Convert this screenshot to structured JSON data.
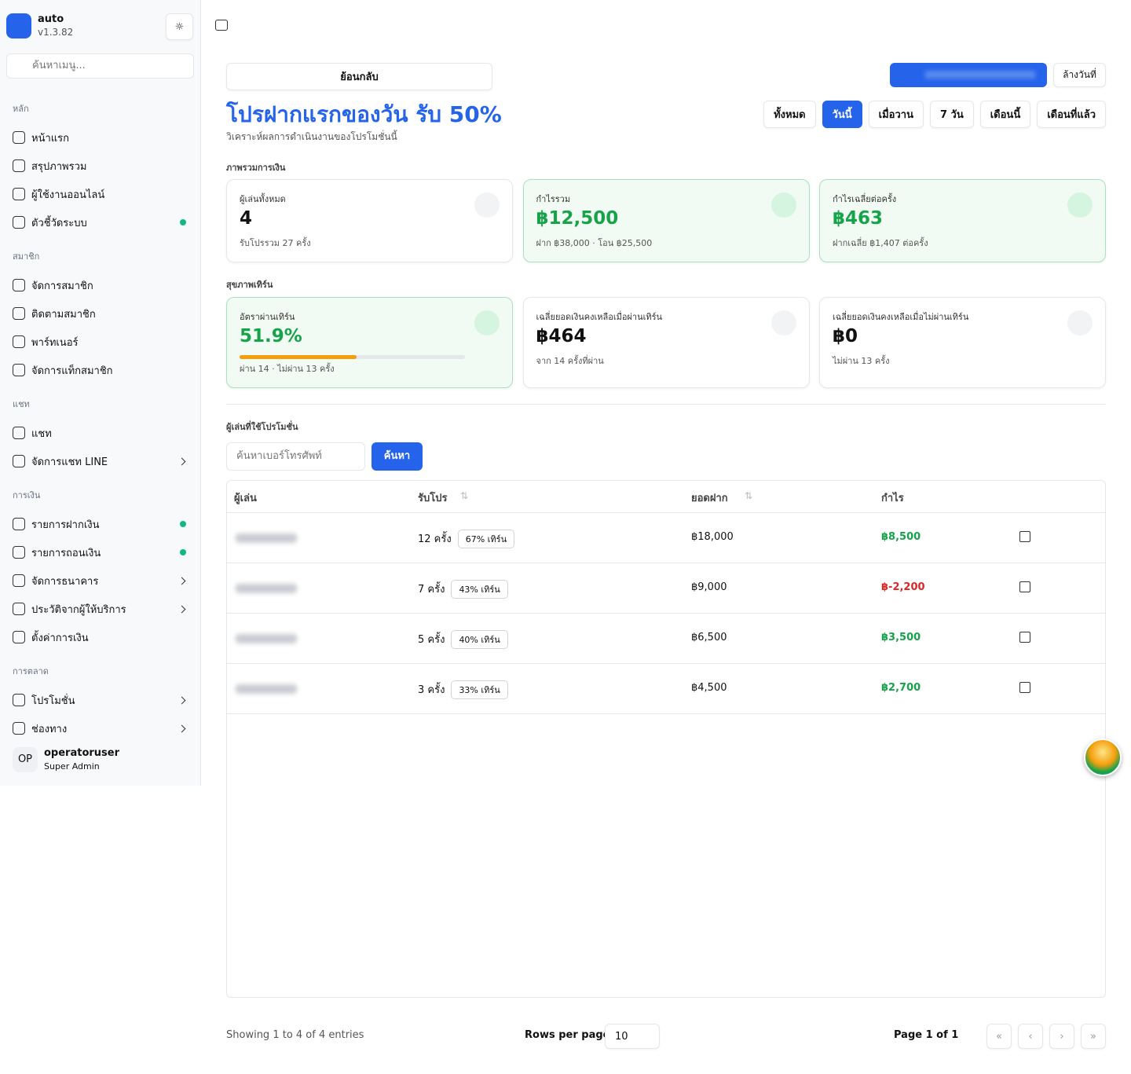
{
  "sidebar": {
    "app_name": "auto",
    "version": "v1.3.82",
    "search_placeholder": "ค้นหาเมนู...",
    "sections": [
      {
        "title": "หลัก",
        "items": [
          {
            "label": "หน้าแรก"
          },
          {
            "label": "สรุปภาพรวม"
          },
          {
            "label": "ผู้ใช้งานออนไลน์"
          },
          {
            "label": "ตัวชี้วัดระบบ",
            "dot": true
          }
        ]
      },
      {
        "title": "สมาชิก",
        "items": [
          {
            "label": "จัดการสมาชิก"
          },
          {
            "label": "ติดตามสมาชิก"
          },
          {
            "label": "พาร์ทเนอร์"
          },
          {
            "label": "จัดการแท็กสมาชิก"
          }
        ]
      },
      {
        "title": "แชท",
        "items": [
          {
            "label": "แชท"
          },
          {
            "label": "จัดการแชท LINE",
            "submenu": true
          }
        ]
      },
      {
        "title": "การเงิน",
        "items": [
          {
            "label": "รายการฝากเงิน",
            "dot": true
          },
          {
            "label": "รายการถอนเงิน",
            "dot": true
          },
          {
            "label": "จัดการธนาคาร",
            "submenu": true
          },
          {
            "label": "ประวัติจากผู้ให้บริการ",
            "submenu": true
          },
          {
            "label": "ตั้งค่าการเงิน"
          }
        ]
      },
      {
        "title": "การตลาด",
        "items": [
          {
            "label": "โปรโมชั่น",
            "submenu": true
          },
          {
            "label": "ช่องทาง",
            "submenu": true
          }
        ]
      }
    ],
    "user": {
      "initials": "OP",
      "name": "operatoruser",
      "role": "Super Admin"
    }
  },
  "header": {
    "back": "ย้อนกลับ",
    "title": "โปรฝากแรกของวัน รับ 50%",
    "subtitle": "วิเคราะห์ผลการดำเนินงานของโปรโมชั่นนี้",
    "clear_date": "ล้างวันที่",
    "filters": [
      "ทั้งหมด",
      "วันนี้",
      "เมื่อวาน",
      "7 วัน",
      "เดือนนี้",
      "เดือนที่แล้ว"
    ],
    "active_filter": 1
  },
  "overview": {
    "heading": "ภาพรวมการเงิน",
    "cards": [
      {
        "label": "ผู้เล่นทั้งหมด",
        "value": "4",
        "note": "รับโปรรวม 27 ครั้ง"
      },
      {
        "label": "กำไรรวม",
        "value": "฿12,500",
        "note": "ฝาก ฿38,000 · โอน ฿25,500",
        "highlight": true
      },
      {
        "label": "กำไรเฉลี่ยต่อครั้ง",
        "value": "฿463",
        "note": "ฝากเฉลี่ย ฿1,407 ต่อครั้ง",
        "highlight": true
      }
    ]
  },
  "health": {
    "heading": "สุขภาพเทิร์น",
    "cards": [
      {
        "label": "อัตราผ่านเทิร์น",
        "value": "51.9%",
        "progress": 51.9,
        "note": "ผ่าน 14 · ไม่ผ่าน 13 ครั้ง",
        "highlight": true
      },
      {
        "label": "เฉลี่ยยอดเงินคงเหลือเมื่อผ่านเทิร์น",
        "value": "฿464",
        "note": "จาก 14 ครั้งที่ผ่าน"
      },
      {
        "label": "เฉลี่ยยอดเงินคงเหลือเมื่อไม่ผ่านเทิร์น",
        "value": "฿0",
        "note": "ไม่ผ่าน 13 ครั้ง"
      }
    ]
  },
  "players": {
    "heading": "ผู้เล่นที่ใช้โปรโมชั่น",
    "search_placeholder": "ค้นหาเบอร์โทรศัพท์",
    "search_button": "ค้นหา",
    "columns": [
      "ผู้เล่น",
      "รับโปร",
      "ยอดฝาก",
      "กำไร"
    ],
    "rows": [
      {
        "claims": "12 ครั้ง",
        "turnover": "67% เทิร์น",
        "deposit": "฿18,000",
        "profit": "฿8,500"
      },
      {
        "claims": "7 ครั้ง",
        "turnover": "43% เทิร์น",
        "deposit": "฿9,000",
        "profit": "฿-2,200"
      },
      {
        "claims": "5 ครั้ง",
        "turnover": "40% เทิร์น",
        "deposit": "฿6,500",
        "profit": "฿3,500"
      },
      {
        "claims": "3 ครั้ง",
        "turnover": "33% เทิร์น",
        "deposit": "฿4,500",
        "profit": "฿2,700"
      }
    ]
  },
  "footer": {
    "showing": "Showing 1 to 4 of 4 entries",
    "rows_per_page_label": "Rows per page",
    "rows_per_page": "10",
    "page": "Page 1 of 1"
  }
}
